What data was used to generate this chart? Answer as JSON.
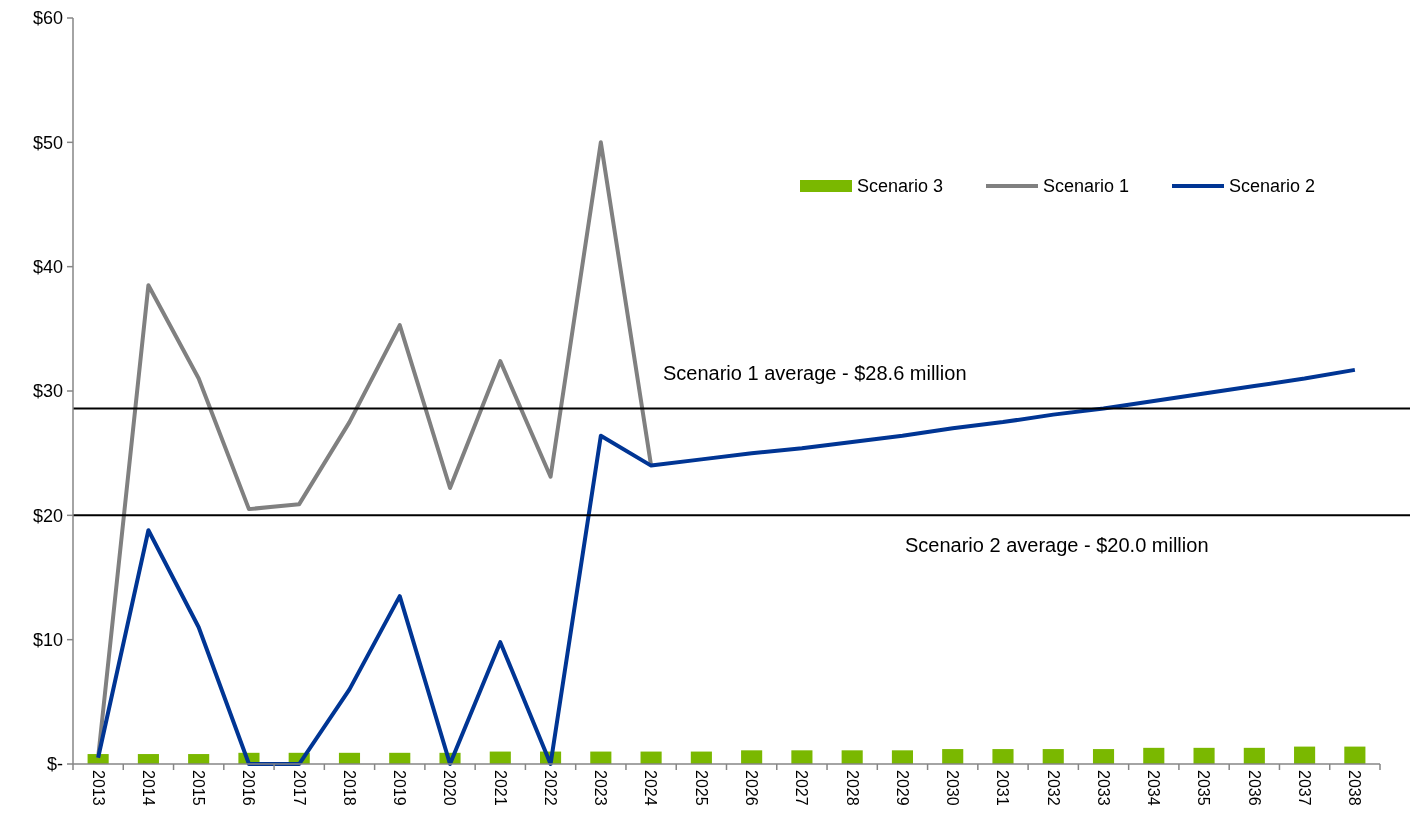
{
  "chart_data": {
    "type": "line",
    "categories": [
      "2013",
      "2014",
      "2015",
      "2016",
      "2017",
      "2018",
      "2019",
      "2020",
      "2021",
      "2022",
      "2023",
      "2024",
      "2025",
      "2026",
      "2027",
      "2028",
      "2029",
      "2030",
      "2031",
      "2032",
      "2033",
      "2034",
      "2035",
      "2036",
      "2037",
      "2038"
    ],
    "series": [
      {
        "name": "Scenario 3",
        "type": "bar",
        "color": "#7ab800",
        "values": [
          0.8,
          0.8,
          0.8,
          0.9,
          0.9,
          0.9,
          0.9,
          0.9,
          1.0,
          1.0,
          1.0,
          1.0,
          1.0,
          1.1,
          1.1,
          1.1,
          1.1,
          1.2,
          1.2,
          1.2,
          1.2,
          1.3,
          1.3,
          1.3,
          1.4,
          1.4
        ]
      },
      {
        "name": "Scenario 1",
        "color": "#808080",
        "values": [
          0.5,
          38.5,
          31,
          20.5,
          20.9,
          27.5,
          35.3,
          22.2,
          32.4,
          23.1,
          50,
          24.0,
          null,
          null,
          null,
          null,
          null,
          null,
          null,
          null,
          null,
          null,
          null,
          null,
          null,
          null
        ]
      },
      {
        "name": "Scenario 2",
        "color": "#003594",
        "values": [
          0.5,
          18.8,
          11,
          0,
          0,
          6,
          13.5,
          0,
          9.8,
          0,
          26.4,
          24.0,
          24.5,
          25.0,
          25.4,
          25.9,
          26.4,
          27.0,
          27.5,
          28.1,
          28.6,
          29.2,
          29.8,
          30.4,
          31.0,
          31.7
        ]
      }
    ],
    "ylim": [
      0,
      60
    ],
    "yticks": [
      {
        "value": 0,
        "label": "$-"
      },
      {
        "value": 10,
        "label": "$10"
      },
      {
        "value": 20,
        "label": "$20"
      },
      {
        "value": 30,
        "label": "$30"
      },
      {
        "value": 40,
        "label": "$40"
      },
      {
        "value": 50,
        "label": "$50"
      },
      {
        "value": 60,
        "label": "$60"
      }
    ],
    "ref_lines": [
      {
        "axis": "y",
        "value": 28.6,
        "label": "Scenario 1 average - $28.6 million",
        "color": "#000000"
      },
      {
        "axis": "y",
        "value": 20.0,
        "label": "Scenario 2 average - $20.0 million",
        "color": "#000000"
      }
    ],
    "legend": "top right",
    "grid": false
  }
}
